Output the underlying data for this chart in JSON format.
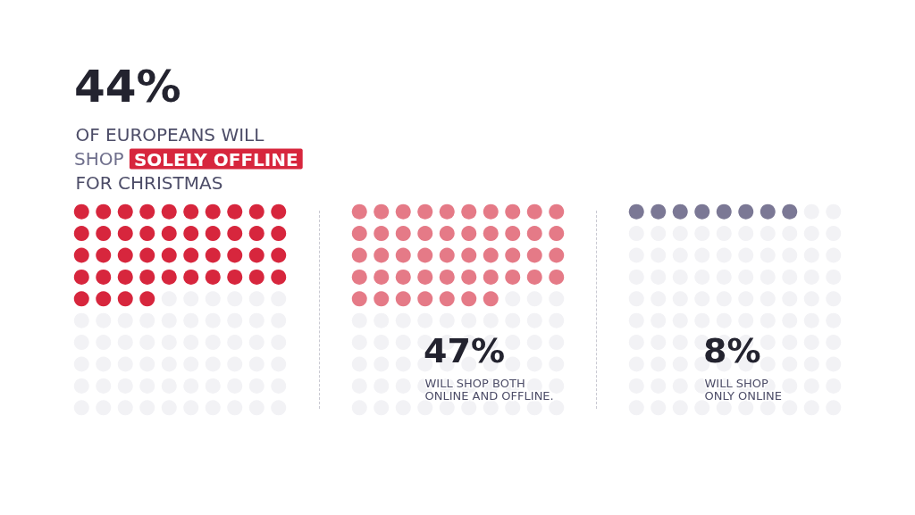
{
  "chart_data": {
    "type": "other",
    "categories": [
      "OF EUROPEANS WILL\nSHOP SOLELY OFFLINE\nFOR CHRISTMAS",
      "WILL SHOP BOTH\nONLINE AND OFFLINE.",
      "WILL SHOP\nONLY ONLINE"
    ],
    "values": [
      44,
      47,
      8
    ],
    "value_labels": [
      "44%",
      "47%",
      "8%"
    ],
    "colors": [
      "#d7263d",
      "#e57a87",
      "#7b7895"
    ]
  }
}
